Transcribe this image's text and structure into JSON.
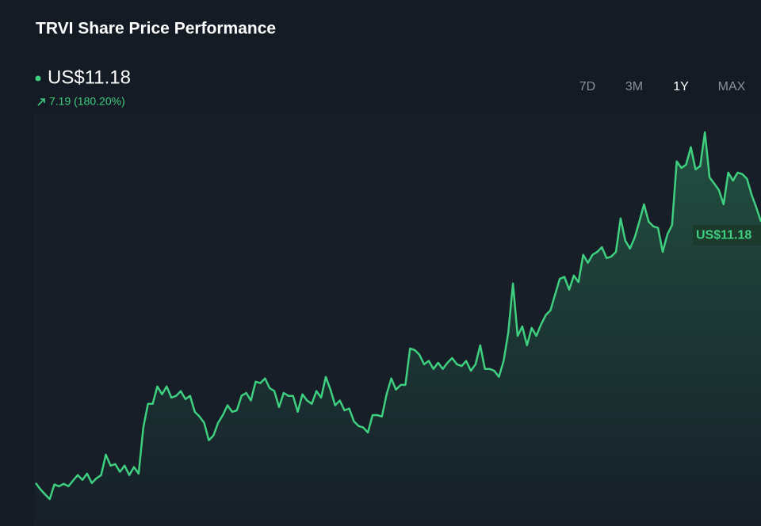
{
  "chart_data": {
    "type": "line",
    "title": "TRVI Share Price Performance",
    "price_label": "US$11.18",
    "change_label": "7.19 (180.20%)",
    "ranges": [
      "7D",
      "3M",
      "1Y",
      "MAX"
    ],
    "active_range": "1Y",
    "color": "#3ecf7f",
    "values": [
      3.99,
      3.82,
      3.68,
      3.55,
      3.95,
      3.9,
      3.97,
      3.9,
      4.06,
      4.21,
      4.08,
      4.25,
      3.99,
      4.12,
      4.21,
      4.77,
      4.47,
      4.51,
      4.3,
      4.47,
      4.21,
      4.43,
      4.25,
      5.52,
      6.17,
      6.17,
      6.65,
      6.43,
      6.65,
      6.34,
      6.39,
      6.52,
      6.3,
      6.39,
      5.95,
      5.82,
      5.65,
      5.17,
      5.3,
      5.65,
      5.86,
      6.13,
      5.95,
      5.99,
      6.39,
      6.47,
      6.26,
      6.78,
      6.74,
      6.87,
      6.6,
      6.52,
      6.08,
      6.47,
      6.39,
      6.39,
      5.95,
      6.43,
      6.26,
      6.17,
      6.52,
      6.34,
      6.91,
      6.56,
      6.13,
      6.26,
      5.99,
      6.04,
      5.69,
      5.56,
      5.52,
      5.38,
      5.86,
      5.86,
      5.82,
      6.43,
      6.87,
      6.56,
      6.69,
      6.69,
      7.69,
      7.65,
      7.52,
      7.26,
      7.35,
      7.13,
      7.3,
      7.13,
      7.3,
      7.43,
      7.26,
      7.21,
      7.35,
      7.08,
      7.26,
      7.78,
      7.13,
      7.13,
      7.08,
      6.91,
      7.35,
      8.13,
      9.48,
      8.04,
      8.3,
      7.78,
      8.26,
      8.04,
      8.35,
      8.61,
      8.74,
      9.18,
      9.61,
      9.66,
      9.31,
      9.7,
      9.52,
      10.27,
      10.05,
      10.27,
      10.35,
      10.48,
      10.18,
      10.22,
      10.35,
      11.27,
      10.66,
      10.44,
      10.74,
      11.18,
      11.66,
      11.18,
      11.05,
      11.01,
      10.35,
      10.83,
      11.09,
      12.84,
      12.66,
      12.75,
      13.23,
      12.62,
      12.71,
      13.64,
      12.4,
      12.23,
      12.05,
      11.66,
      12.53,
      12.31,
      12.53,
      12.49,
      12.36,
      11.92,
      11.57,
      11.18
    ]
  }
}
